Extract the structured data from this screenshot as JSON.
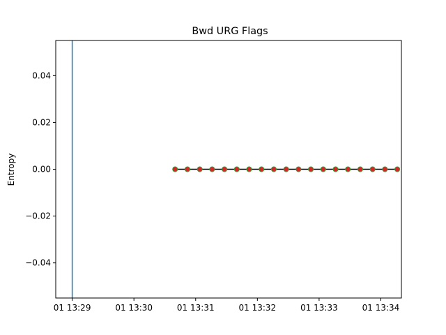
{
  "chart_data": {
    "type": "line",
    "title": "Bwd URG Flags",
    "xlabel": "",
    "ylabel": "Entropy",
    "xlim": [
      "01 13:28:44",
      "01 13:34:20"
    ],
    "ylim": [
      -0.055,
      0.055
    ],
    "x_ticks": [
      "01 13:29",
      "01 13:30",
      "01 13:31",
      "01 13:32",
      "01 13:33",
      "01 13:34"
    ],
    "y_ticks": [
      "0.04",
      "0.02",
      "0.00",
      "−0.02",
      "−0.04"
    ],
    "y_tick_values": [
      0.04,
      0.02,
      0.0,
      -0.02,
      -0.04
    ],
    "vertical_lines": [
      {
        "x": "01 13:29:00",
        "color": "#1f77b4"
      }
    ],
    "series": [
      {
        "line_color": "#000000",
        "marker_face_color": "#d62728",
        "marker_edge_color": "#2ca02c",
        "x": [
          "01 13:30:40",
          "01 13:30:52",
          "01 13:31:04",
          "01 13:31:16",
          "01 13:31:28",
          "01 13:31:40",
          "01 13:31:52",
          "01 13:32:04",
          "01 13:32:16",
          "01 13:32:28",
          "01 13:32:40",
          "01 13:32:52",
          "01 13:33:04",
          "01 13:33:16",
          "01 13:33:28",
          "01 13:33:40",
          "01 13:33:52",
          "01 13:34:04",
          "01 13:34:16"
        ],
        "values": [
          0,
          0,
          0,
          0,
          0,
          0,
          0,
          0,
          0,
          0,
          0,
          0,
          0,
          0,
          0,
          0,
          0,
          0,
          0
        ]
      }
    ],
    "grid": false
  }
}
